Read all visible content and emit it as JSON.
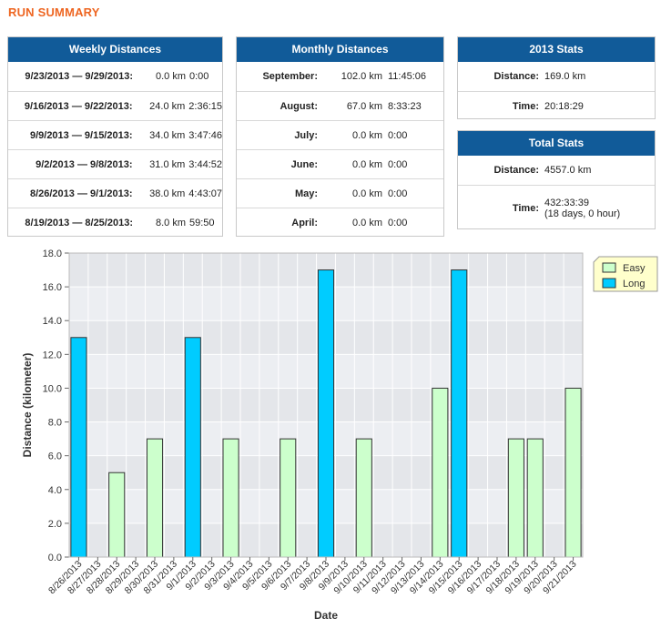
{
  "page": {
    "title": "RUN SUMMARY"
  },
  "weekly": {
    "title": "Weekly Distances",
    "rows": [
      {
        "label": "9/23/2013 — 9/29/2013:",
        "distance": "0.0 km",
        "time": "0:00"
      },
      {
        "label": "9/16/2013 — 9/22/2013:",
        "distance": "24.0 km",
        "time": "2:36:15"
      },
      {
        "label": "9/9/2013 — 9/15/2013:",
        "distance": "34.0 km",
        "time": "3:47:46"
      },
      {
        "label": "9/2/2013 — 9/8/2013:",
        "distance": "31.0 km",
        "time": "3:44:52"
      },
      {
        "label": "8/26/2013 — 9/1/2013:",
        "distance": "38.0 km",
        "time": "4:43:07"
      },
      {
        "label": "8/19/2013 — 8/25/2013:",
        "distance": "8.0 km",
        "time": "59:50"
      }
    ]
  },
  "monthly": {
    "title": "Monthly Distances",
    "rows": [
      {
        "label": "September:",
        "distance": "102.0 km",
        "time": "11:45:06"
      },
      {
        "label": "August:",
        "distance": "67.0 km",
        "time": "8:33:23"
      },
      {
        "label": "July:",
        "distance": "0.0 km",
        "time": "0:00"
      },
      {
        "label": "June:",
        "distance": "0.0 km",
        "time": "0:00"
      },
      {
        "label": "May:",
        "distance": "0.0 km",
        "time": "0:00"
      },
      {
        "label": "April:",
        "distance": "0.0 km",
        "time": "0:00"
      }
    ]
  },
  "year_stats": {
    "title": "2013 Stats",
    "distance_label": "Distance:",
    "distance": "169.0 km",
    "time_label": "Time:",
    "time": "20:18:29"
  },
  "total_stats": {
    "title": "Total Stats",
    "distance_label": "Distance:",
    "distance": "4557.0 km",
    "time_label": "Time:",
    "time": "432:33:39",
    "time_sub": "(18 days, 0 hour)"
  },
  "colors": {
    "header_bg": "#115b99",
    "title_orange": "#ee6622",
    "easy": "#ccffcc",
    "long": "#00ccff"
  },
  "chart_data": {
    "type": "bar",
    "xlabel": "Date",
    "ylabel": "Distance (kilometer)",
    "ylim": [
      0,
      18
    ],
    "yticks": [
      "0.0",
      "2.0",
      "4.0",
      "6.0",
      "8.0",
      "10.0",
      "12.0",
      "14.0",
      "16.0",
      "18.0"
    ],
    "legend_position": "right",
    "categories": [
      "8/26/2013",
      "8/27/2013",
      "8/28/2013",
      "8/29/2013",
      "8/30/2013",
      "8/31/2013",
      "9/1/2013",
      "9/2/2013",
      "9/3/2013",
      "9/4/2013",
      "9/5/2013",
      "9/6/2013",
      "9/7/2013",
      "9/8/2013",
      "9/9/2013",
      "9/10/2013",
      "9/11/2013",
      "9/12/2013",
      "9/13/2013",
      "9/14/2013",
      "9/15/2013",
      "9/16/2013",
      "9/17/2013",
      "9/18/2013",
      "9/19/2013",
      "9/20/2013",
      "9/21/2013"
    ],
    "series": [
      {
        "name": "Easy",
        "color": "#ccffcc",
        "values": [
          0,
          0,
          5,
          0,
          7,
          0,
          0,
          0,
          7,
          0,
          0,
          7,
          0,
          0,
          0,
          7,
          0,
          0,
          0,
          10,
          0,
          0,
          0,
          7,
          7,
          0,
          10
        ]
      },
      {
        "name": "Long",
        "color": "#00ccff",
        "values": [
          13,
          0,
          0,
          0,
          0,
          0,
          13,
          0,
          0,
          0,
          0,
          0,
          0,
          17,
          0,
          0,
          0,
          0,
          0,
          0,
          17,
          0,
          0,
          0,
          0,
          0,
          0
        ]
      }
    ]
  }
}
